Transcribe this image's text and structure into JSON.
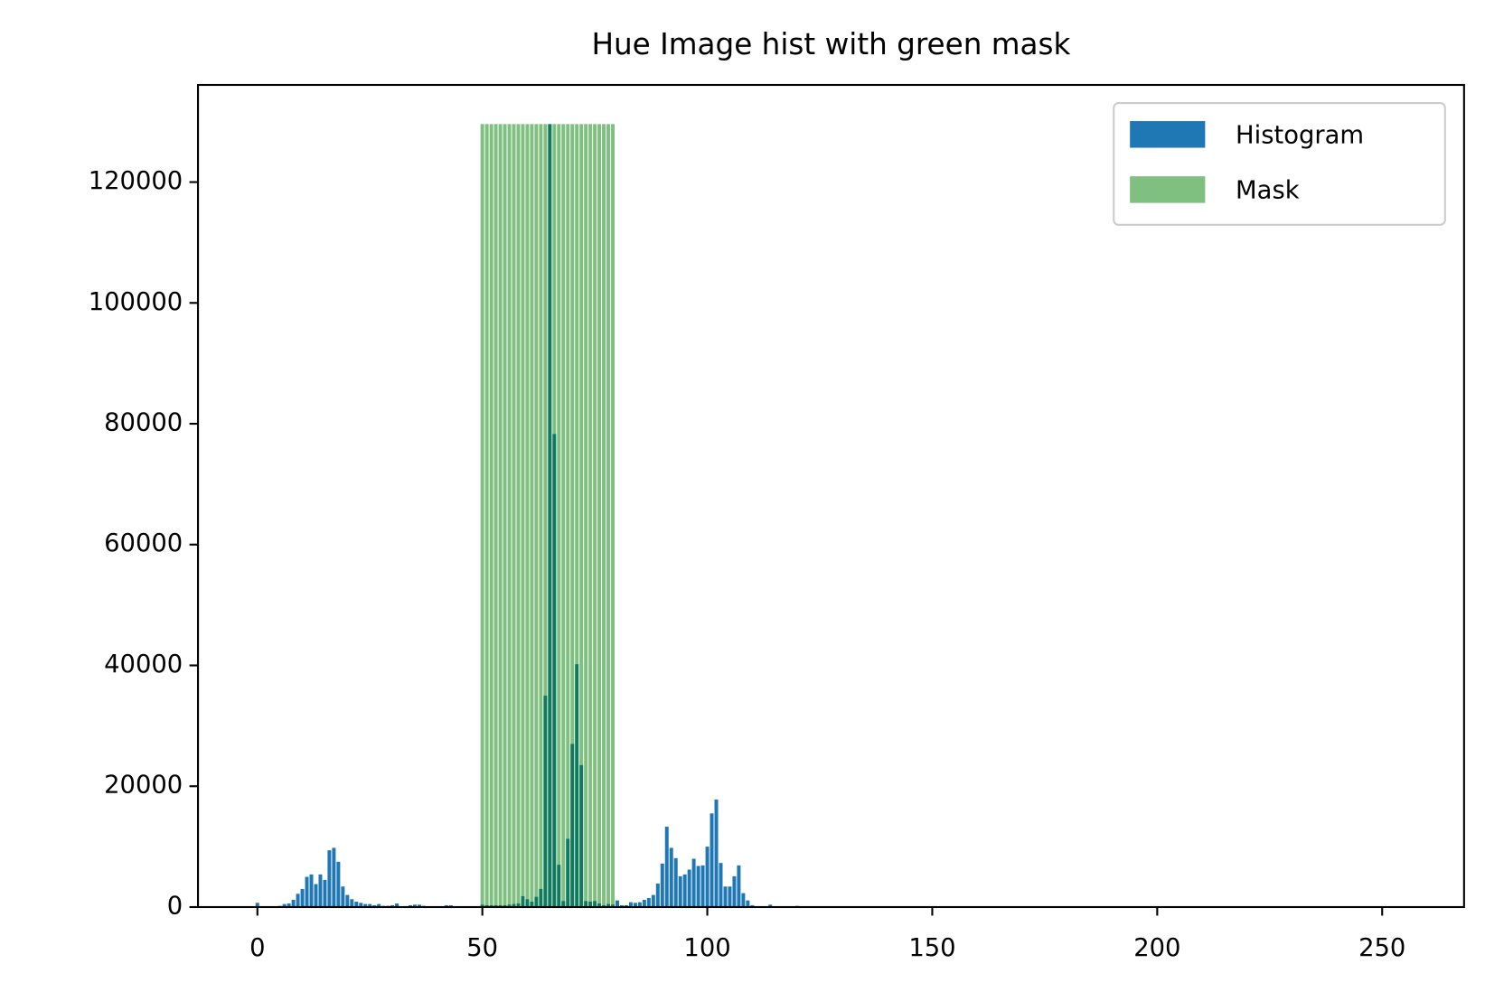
{
  "chart_data": {
    "type": "bar",
    "title": "Hue Image hist with green mask",
    "xlim": [
      -13.2,
      268.2
    ],
    "xticks": [
      0,
      50,
      100,
      150,
      200,
      250
    ],
    "ylim": [
      0,
      136080
    ],
    "yticks": [
      0,
      20000,
      40000,
      60000,
      80000,
      100000,
      120000
    ],
    "legend": "upper right",
    "series": [
      {
        "name": "Histogram",
        "color": "#1f77b4",
        "x": [
          0,
          1,
          2,
          3,
          4,
          5,
          6,
          7,
          8,
          9,
          10,
          11,
          12,
          13,
          14,
          15,
          16,
          17,
          18,
          19,
          20,
          21,
          22,
          23,
          24,
          25,
          26,
          27,
          28,
          29,
          30,
          31,
          32,
          33,
          34,
          35,
          36,
          37,
          38,
          39,
          40,
          41,
          42,
          43,
          44,
          45,
          46,
          47,
          48,
          49,
          50,
          51,
          52,
          53,
          54,
          55,
          56,
          57,
          58,
          59,
          60,
          61,
          62,
          63,
          64,
          65,
          66,
          67,
          68,
          69,
          70,
          71,
          72,
          73,
          74,
          75,
          76,
          77,
          78,
          79,
          80,
          81,
          82,
          83,
          84,
          85,
          86,
          87,
          88,
          89,
          90,
          91,
          92,
          93,
          94,
          95,
          96,
          97,
          98,
          99,
          100,
          101,
          102,
          103,
          104,
          105,
          106,
          107,
          108,
          109,
          110,
          111,
          112,
          113,
          114,
          115,
          116,
          117,
          118,
          119,
          120
        ],
        "values": [
          700,
          0,
          0,
          0,
          0,
          200,
          500,
          600,
          1200,
          2200,
          3000,
          5000,
          5400,
          3800,
          5400,
          4500,
          9400,
          9800,
          7500,
          3400,
          2000,
          1300,
          900,
          700,
          500,
          500,
          300,
          500,
          200,
          200,
          300,
          600,
          100,
          100,
          300,
          400,
          400,
          200,
          100,
          100,
          100,
          100,
          300,
          300,
          100,
          100,
          100,
          100,
          100,
          100,
          400,
          300,
          300,
          300,
          300,
          300,
          400,
          500,
          600,
          1800,
          1300,
          900,
          1700,
          3000,
          35000,
          129600,
          78300,
          7000,
          1000,
          11300,
          27000,
          40200,
          23500,
          1000,
          900,
          1000,
          600,
          300,
          500,
          400,
          1100,
          300,
          300,
          800,
          700,
          800,
          1200,
          1500,
          2000,
          3900,
          7200,
          13300,
          9800,
          8100,
          5100,
          5400,
          6200,
          8000,
          6800,
          6900,
          10000,
          15500,
          17800,
          7300,
          3400,
          3400,
          5100,
          6900,
          2300,
          1100,
          300,
          100,
          100,
          100,
          400,
          50,
          50,
          50,
          50,
          50,
          200
        ]
      },
      {
        "name": "Mask",
        "color": "#008000",
        "opacity": 0.5,
        "x": [
          50,
          51,
          52,
          53,
          54,
          55,
          56,
          57,
          58,
          59,
          60,
          61,
          62,
          63,
          64,
          65,
          66,
          67,
          68,
          69,
          70,
          71,
          72,
          73,
          74,
          75,
          76,
          77,
          78,
          79
        ],
        "values": [
          129600,
          129600,
          129600,
          129600,
          129600,
          129600,
          129600,
          129600,
          129600,
          129600,
          129600,
          129600,
          129600,
          129600,
          129600,
          129600,
          129600,
          129600,
          129600,
          129600,
          129600,
          129600,
          129600,
          129600,
          129600,
          129600,
          129600,
          129600,
          129600,
          129600
        ]
      }
    ]
  }
}
